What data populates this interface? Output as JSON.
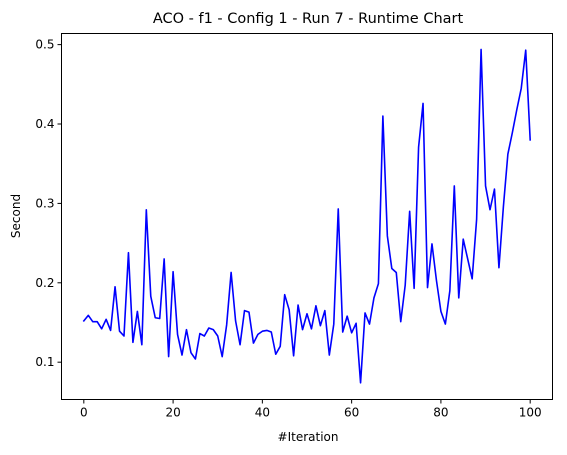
{
  "chart_data": {
    "type": "line",
    "title": "ACO - f1 - Config 1 - Run 7 - Runtime Chart",
    "xlabel": "#Iteration",
    "ylabel": "Second",
    "xlim": [
      -5,
      105
    ],
    "ylim": [
      0.053,
      0.514
    ],
    "xticks": [
      0,
      20,
      40,
      60,
      80,
      100
    ],
    "yticks": [
      0.1,
      0.2,
      0.3,
      0.4,
      0.5
    ],
    "xtick_labels": [
      "0",
      "20",
      "40",
      "60",
      "80",
      "100"
    ],
    "ytick_labels": [
      "0.1",
      "0.2",
      "0.3",
      "0.4",
      "0.5"
    ],
    "grid": false,
    "series": [
      {
        "color": "#0000ff",
        "x": [
          0,
          1,
          2,
          3,
          4,
          5,
          6,
          7,
          8,
          9,
          10,
          11,
          12,
          13,
          14,
          15,
          16,
          17,
          18,
          19,
          20,
          21,
          22,
          23,
          24,
          25,
          26,
          27,
          28,
          29,
          30,
          31,
          32,
          33,
          34,
          35,
          36,
          37,
          38,
          39,
          40,
          41,
          42,
          43,
          44,
          45,
          46,
          47,
          48,
          49,
          50,
          51,
          52,
          53,
          54,
          55,
          56,
          57,
          58,
          59,
          60,
          61,
          62,
          63,
          64,
          65,
          66,
          67,
          68,
          69,
          70,
          71,
          72,
          73,
          74,
          75,
          76,
          77,
          78,
          79,
          80,
          81,
          82,
          83,
          84,
          85,
          86,
          87,
          88,
          89,
          90,
          91,
          92,
          93,
          94,
          95,
          96,
          97,
          98,
          99,
          100
        ],
        "values": [
          0.152,
          0.159,
          0.151,
          0.151,
          0.142,
          0.154,
          0.14,
          0.195,
          0.139,
          0.133,
          0.238,
          0.125,
          0.164,
          0.122,
          0.292,
          0.183,
          0.156,
          0.155,
          0.23,
          0.107,
          0.214,
          0.135,
          0.109,
          0.141,
          0.112,
          0.104,
          0.136,
          0.133,
          0.143,
          0.141,
          0.133,
          0.107,
          0.147,
          0.213,
          0.152,
          0.122,
          0.165,
          0.163,
          0.124,
          0.135,
          0.139,
          0.14,
          0.138,
          0.11,
          0.12,
          0.185,
          0.166,
          0.108,
          0.172,
          0.141,
          0.161,
          0.142,
          0.171,
          0.146,
          0.165,
          0.109,
          0.148,
          0.293,
          0.138,
          0.158,
          0.137,
          0.149,
          0.074,
          0.162,
          0.148,
          0.181,
          0.199,
          0.41,
          0.259,
          0.218,
          0.213,
          0.151,
          0.197,
          0.29,
          0.193,
          0.371,
          0.426,
          0.194,
          0.249,
          0.203,
          0.164,
          0.148,
          0.19,
          0.322,
          0.181,
          0.255,
          0.23,
          0.205,
          0.28,
          0.494,
          0.322,
          0.292,
          0.318,
          0.219,
          0.296,
          0.362,
          0.389,
          0.418,
          0.445,
          0.493,
          0.38
        ]
      }
    ]
  }
}
